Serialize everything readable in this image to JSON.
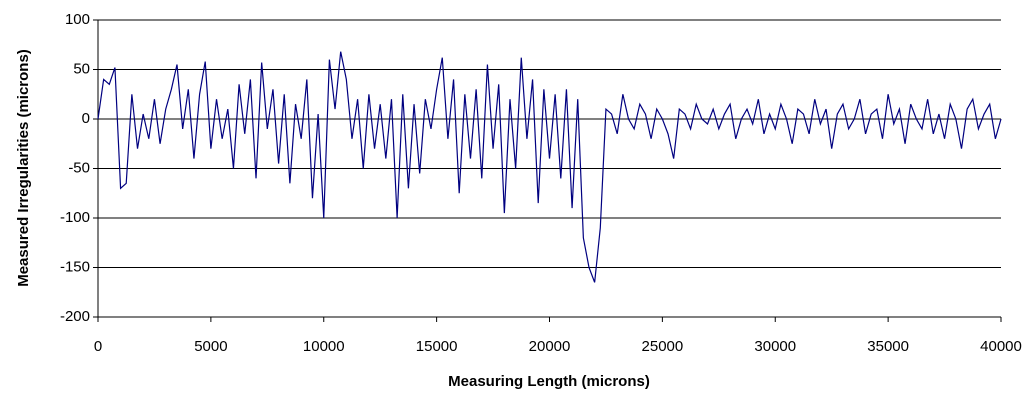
{
  "chart_data": {
    "type": "line",
    "xlabel": "Measuring Length (microns)",
    "ylabel": "Measured Irregularities (microns)",
    "x": [
      0,
      250,
      500,
      750,
      1000,
      1250,
      1500,
      1750,
      2000,
      2250,
      2500,
      2750,
      3000,
      3250,
      3500,
      3750,
      4000,
      4250,
      4500,
      4750,
      5000,
      5250,
      5500,
      5750,
      6000,
      6250,
      6500,
      6750,
      7000,
      7250,
      7500,
      7750,
      8000,
      8250,
      8500,
      8750,
      9000,
      9250,
      9500,
      9750,
      10000,
      10250,
      10500,
      10750,
      11000,
      11250,
      11500,
      11750,
      12000,
      12250,
      12500,
      12750,
      13000,
      13250,
      13500,
      13750,
      14000,
      14250,
      14500,
      14750,
      15000,
      15250,
      15500,
      15750,
      16000,
      16250,
      16500,
      16750,
      17000,
      17250,
      17500,
      17750,
      18000,
      18250,
      18500,
      18750,
      19000,
      19250,
      19500,
      19750,
      20000,
      20250,
      20500,
      20750,
      21000,
      21250,
      21500,
      21750,
      22000,
      22250,
      22500,
      22750,
      23000,
      23250,
      23500,
      23750,
      24000,
      24250,
      24500,
      24750,
      25000,
      25250,
      25500,
      25750,
      26000,
      26250,
      26500,
      26750,
      27000,
      27250,
      27500,
      27750,
      28000,
      28250,
      28500,
      28750,
      29000,
      29250,
      29500,
      29750,
      30000,
      30250,
      30500,
      30750,
      31000,
      31250,
      31500,
      31750,
      32000,
      32250,
      32500,
      32750,
      33000,
      33250,
      33500,
      33750,
      34000,
      34250,
      34500,
      34750,
      35000,
      35250,
      35500,
      35750,
      36000,
      36250,
      36500,
      36750,
      37000,
      37250,
      37500,
      37750,
      38000,
      38250,
      38500,
      38750,
      39000,
      39250,
      39500,
      39750,
      40000
    ],
    "series": [
      {
        "color": "#000080",
        "values": [
          0,
          40,
          35,
          52,
          -70,
          -65,
          25,
          -30,
          5,
          -20,
          20,
          -25,
          10,
          30,
          55,
          -10,
          30,
          -40,
          25,
          58,
          -30,
          20,
          -20,
          10,
          -50,
          35,
          -15,
          40,
          -60,
          57,
          -10,
          30,
          -45,
          25,
          -65,
          15,
          -20,
          40,
          -80,
          5,
          -100,
          60,
          10,
          68,
          40,
          -20,
          20,
          -50,
          25,
          -30,
          15,
          -40,
          20,
          -100,
          25,
          -70,
          15,
          -55,
          20,
          -10,
          30,
          62,
          -20,
          40,
          -75,
          25,
          -40,
          30,
          -60,
          55,
          -30,
          35,
          -95,
          20,
          -50,
          62,
          -20,
          40,
          -85,
          30,
          -40,
          25,
          -60,
          30,
          -90,
          20,
          -120,
          -150,
          -165,
          -110,
          10,
          5,
          -15,
          25,
          0,
          -10,
          15,
          5,
          -20,
          10,
          0,
          -15,
          -40,
          10,
          5,
          -10,
          15,
          0,
          -5,
          10,
          -10,
          5,
          15,
          -20,
          0,
          10,
          -5,
          20,
          -15,
          5,
          -10,
          15,
          0,
          -25,
          10,
          5,
          -15,
          20,
          -5,
          10,
          -30,
          5,
          15,
          -10,
          0,
          20,
          -15,
          5,
          10,
          -20,
          25,
          -5,
          10,
          -25,
          15,
          0,
          -10,
          20,
          -15,
          5,
          -20,
          15,
          0,
          -30,
          10,
          20,
          -10,
          5,
          15,
          -20,
          0
        ]
      }
    ],
    "xlim": [
      0,
      40000
    ],
    "xticks": [
      0,
      5000,
      10000,
      15000,
      20000,
      25000,
      30000,
      35000,
      40000
    ],
    "ylim": [
      -200,
      100
    ],
    "yticks": [
      -200,
      -150,
      -100,
      -50,
      0,
      50,
      100
    ],
    "grid": true
  }
}
